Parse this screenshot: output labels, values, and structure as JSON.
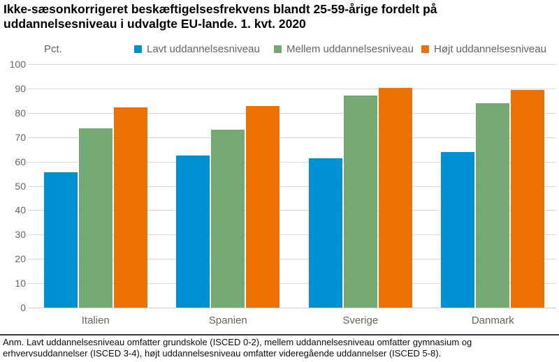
{
  "title": "Ikke-sæsonkorrigeret beskæftigelsesfrekvens blandt 25-59-årige fordelt på uddannelsesniveau i udvalgte EU-lande. 1. kvt. 2020",
  "unit_label": "Pct.",
  "footnote": "Anm. Lavt uddannelsesniveau omfatter grundskole (ISCED 0-2), mellem uddannelsesniveau omfatter gymnasium og erhvervsuddannelser (ISCED 3-4), højt uddannelsesniveau omfatter videregående uddannelser (ISCED 5-8).",
  "colors": {
    "low_education": "#0091d3",
    "medium_education": "#75a973",
    "high_education": "#ee7103",
    "axis_text": "#66655f",
    "gridline": "#dcd8d3"
  },
  "chart_data": {
    "type": "bar",
    "title": "Ikke-sæsonkorrigeret beskæftigelsesfrekvens blandt 25-59-årige fordelt på uddannelsesniveau i udvalgte EU-lande. 1. kvt. 2020",
    "categories": [
      "Italien",
      "Spanien",
      "Sverige",
      "Danmark"
    ],
    "series": [
      {
        "name": "Lavt uddannelsesniveau",
        "color": "#0091d3",
        "values": [
          55.7,
          62.5,
          61.4,
          63.8
        ]
      },
      {
        "name": "Mellem uddannelsesniveau",
        "color": "#75a973",
        "values": [
          73.7,
          73.2,
          87.0,
          84.0
        ]
      },
      {
        "name": "Højt uddannelsesniveau",
        "color": "#ee7103",
        "values": [
          82.2,
          82.8,
          90.3,
          89.5
        ]
      }
    ],
    "xlabel": "",
    "ylabel": "Pct.",
    "ylim": [
      0,
      100
    ],
    "ytick_interval": 10,
    "grid": true,
    "legend_position": "top"
  }
}
